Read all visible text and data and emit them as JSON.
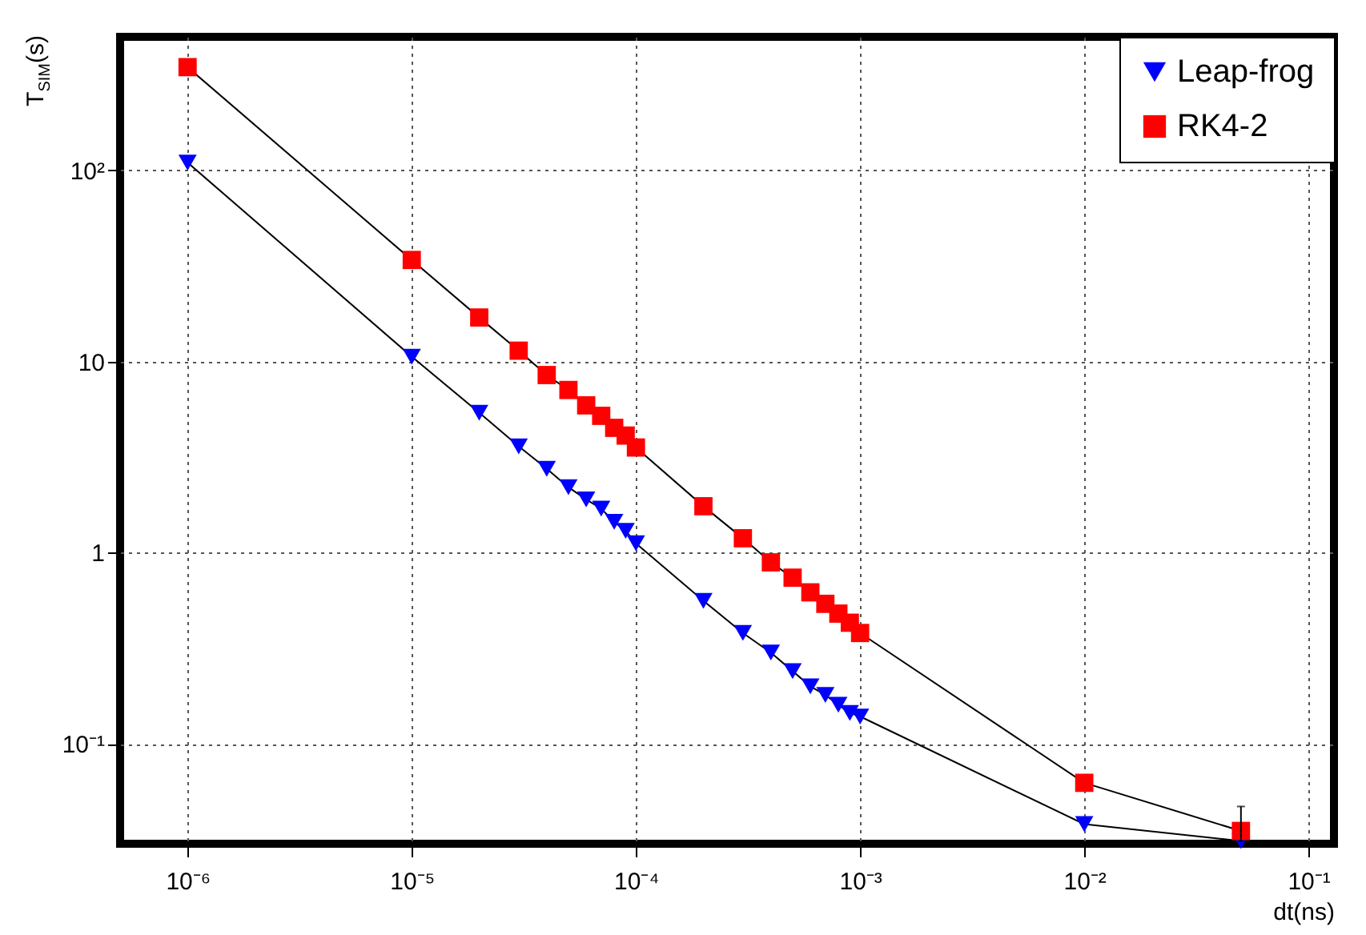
{
  "chart_data": {
    "type": "line",
    "xlabel": "dt(ns)",
    "ylabel": "T$_{SIM}$(s)",
    "log": "xy",
    "grid": true,
    "legend": "top right",
    "line_style": "solid",
    "x": [
      1e-06,
      1e-05,
      2e-05,
      3e-05,
      4e-05,
      5e-05,
      6e-05,
      7e-05,
      8e-05,
      9e-05,
      0.0001,
      0.0002,
      0.0003,
      0.0004,
      0.0005,
      0.0006,
      0.0007,
      0.0008,
      0.0009,
      0.001,
      0.01,
      0.05
    ],
    "xlim": [
      5e-07,
      0.13
    ],
    "ylim": [
      0.03,
      500
    ],
    "xticks": [
      {
        "value": 1e-06,
        "label": "10⁻⁶"
      },
      {
        "value": 1e-05,
        "label": "10⁻⁵"
      },
      {
        "value": 0.0001,
        "label": "10⁻⁴"
      },
      {
        "value": 0.001,
        "label": "10⁻³"
      },
      {
        "value": 0.01,
        "label": "10⁻²"
      },
      {
        "value": 0.1,
        "label": "10⁻¹"
      }
    ],
    "yticks": [
      {
        "value": 0.1,
        "label": "10⁻¹"
      },
      1,
      10,
      {
        "value": 100,
        "label": "10²"
      }
    ],
    "series": [
      {
        "name": "Leap-frog",
        "color": "#0000ff",
        "marker": "triangle",
        "values": [
          110,
          10.6,
          5.4,
          3.6,
          2.75,
          2.2,
          1.9,
          1.7,
          1.45,
          1.3,
          1.12,
          0.56,
          0.38,
          0.3,
          0.24,
          0.2,
          0.18,
          0.16,
          0.145,
          0.139,
          0.038,
          0.031
        ]
      },
      {
        "name": "RK4-2",
        "color": "#ff0000",
        "marker": "square",
        "values": [
          347,
          34,
          17,
          11.4,
          8.5,
          7.1,
          5.9,
          5.2,
          4.5,
          4.1,
          3.55,
          1.75,
          1.19,
          0.89,
          0.74,
          0.62,
          0.54,
          0.48,
          0.43,
          0.38,
          0.0625,
          0.035
        ],
        "errors": [
          null,
          null,
          null,
          null,
          null,
          null,
          null,
          null,
          null,
          null,
          null,
          null,
          null,
          null,
          null,
          null,
          null,
          null,
          null,
          null,
          null,
          [
            0.031,
            0.047
          ]
        ]
      }
    ]
  }
}
